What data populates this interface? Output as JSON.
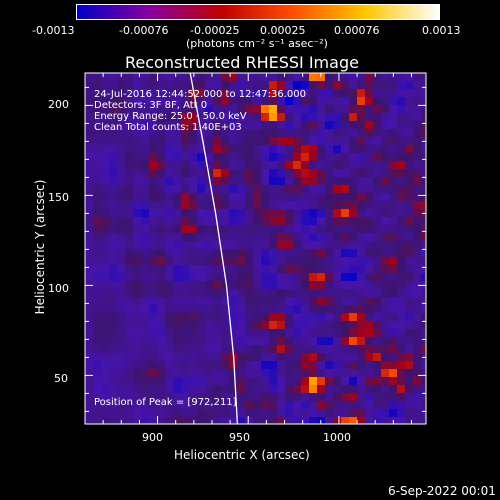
{
  "chart_data": {
    "type": "heatmap",
    "title": "Reconstructed RHESSI Image",
    "xlabel": "Heliocentric X (arcsec)",
    "ylabel": "Heliocentric Y (arcsec)",
    "xlim": [
      860,
      1048
    ],
    "ylim": [
      23,
      218
    ],
    "x_ticks": [
      900,
      950,
      1000
    ],
    "y_ticks": [
      50,
      100,
      150,
      200
    ],
    "colorbar": {
      "range": [
        -0.0013,
        0.0013
      ],
      "tick_labels": [
        "-0.0013",
        "-0.00076",
        "-0.00025",
        "0.00025",
        "0.00076",
        "0.0013"
      ],
      "unit_label": "(photons cm⁻² s⁻¹ asec⁻²)",
      "colors": [
        "#0000c8",
        "#8800a0",
        "#c00000",
        "#ff5000",
        "#ffc800",
        "#ffffff"
      ]
    },
    "annotations": {
      "time_range": "24-Jul-2016 12:44:52.000 to 12:47:36.000",
      "detectors": "Detectors: 3F 8F, Att 0",
      "energy_range": "Energy Range: 25.0 - 50.0 keV",
      "method_counts": "Clean    Total counts: 1.40E+03",
      "peak": "Position of Peak = [972,211]"
    },
    "limb_curve": {
      "x": [
        918,
        925,
        932,
        938,
        942,
        944
      ],
      "y": [
        218,
        180,
        140,
        100,
        60,
        23
      ]
    }
  },
  "footer": {
    "date": "6-Sep-2022 00:01"
  }
}
